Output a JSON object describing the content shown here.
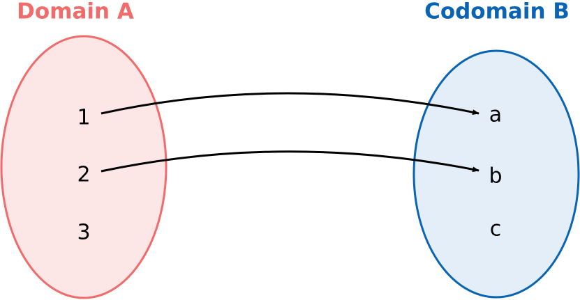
{
  "domain": {
    "title": "Domain A",
    "elements": [
      "1",
      "2",
      "3"
    ]
  },
  "codomain": {
    "title": "Codomain B",
    "elements": [
      "a",
      "b",
      "c"
    ]
  }
}
